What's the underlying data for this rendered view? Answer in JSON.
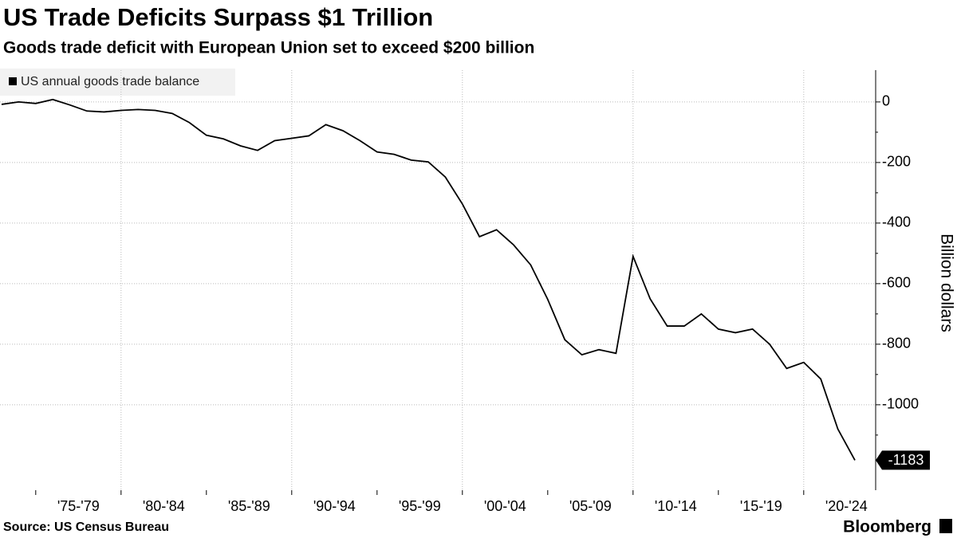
{
  "chart_data": {
    "type": "line",
    "title": "US Trade Deficits Surpass $1 Trillion",
    "subtitle": "Goods trade deficit with European Union set to exceed $200 billion",
    "source": "Source: US Census Bureau",
    "brand": "Bloomberg",
    "y_label": "Billion dollars",
    "x_labels": [
      "'75-'79",
      "'80-'84",
      "'85-'89",
      "'90-'94",
      "'95-'99",
      "'00-'04",
      "'05-'09",
      "'10-'14",
      "'15-'19",
      "'20-'24"
    ],
    "series": [
      {
        "name": "US annual goods trade balance",
        "color": "#000000",
        "values": [
          -8,
          0,
          -5,
          8,
          -10,
          -30,
          -33,
          -28,
          -25,
          -28,
          -38,
          -68,
          -110,
          -122,
          -145,
          -160,
          -128,
          -120,
          -112,
          -75,
          -95,
          -128,
          -165,
          -173,
          -192,
          -198,
          -248,
          -337,
          -445,
          -422,
          -472,
          -538,
          -652,
          -785,
          -835,
          -818,
          -830,
          -510,
          -650,
          -740,
          -740,
          -700,
          -750,
          -762,
          -750,
          -800,
          -880,
          -860,
          -915,
          -1080,
          -1183
        ]
      }
    ],
    "ylim": [
      -1282,
      105
    ],
    "yticks": [
      0,
      -200,
      -400,
      -600,
      -800,
      -1000
    ],
    "grid": true
  }
}
